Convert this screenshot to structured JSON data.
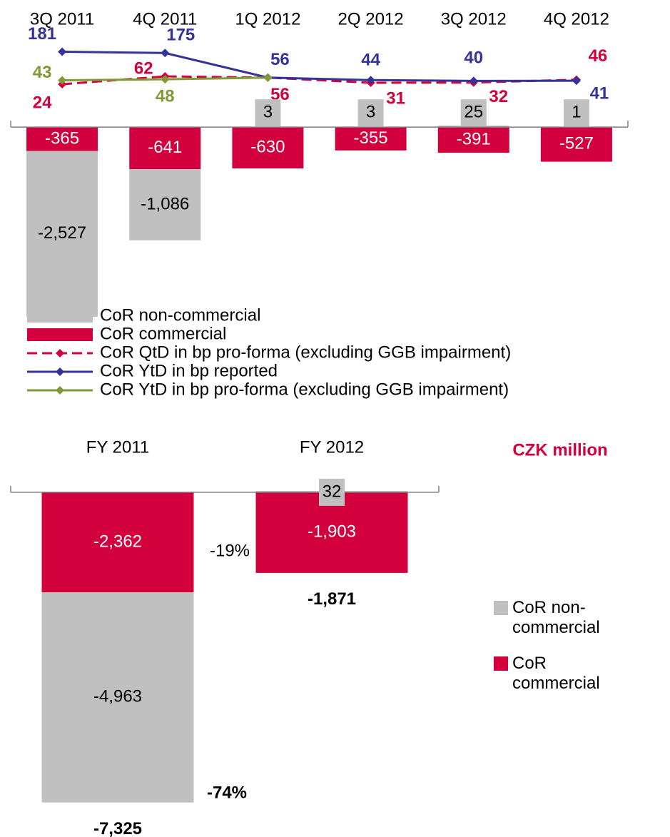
{
  "chart_data": [
    {
      "type": "bar",
      "stacked": true,
      "categories": [
        "3Q 2011",
        "4Q 2011",
        "1Q 2012",
        "2Q 2012",
        "3Q 2012",
        "4Q 2012"
      ],
      "series": [
        {
          "name": "CoR non-commercial",
          "color": "#c0c0c0",
          "values": [
            -2527,
            -1086,
            3,
            3,
            25,
            1
          ],
          "value_labels": [
            "-2,527",
            "-1,086",
            "3",
            "3",
            "25",
            "1"
          ]
        },
        {
          "name": "CoR commercial",
          "color": "#d2003c",
          "values": [
            -365,
            -641,
            -630,
            -355,
            -391,
            -527
          ]
        },
        {
          "name": "CoR QtD in bp pro-forma (excluding GGB impairment)",
          "type": "line",
          "axis": "y2",
          "dashed": true,
          "color": "#d2003c",
          "values": [
            24,
            62,
            56,
            31,
            32,
            46
          ]
        },
        {
          "name": "CoR YtD in bp reported",
          "type": "line",
          "axis": "y2",
          "color": "#333399",
          "values": [
            181,
            175,
            56,
            44,
            40,
            41
          ]
        },
        {
          "name": "CoR YtD in bp pro-forma (excluding GGB impairment)",
          "type": "line",
          "axis": "y2",
          "color": "#7f9a36",
          "values": [
            43,
            48,
            56,
            null,
            null,
            null
          ],
          "value_labels": [
            "43",
            "48",
            null,
            null,
            null,
            null
          ]
        }
      ],
      "ylim": [
        -2600,
        100
      ],
      "y2lim": [
        0,
        200
      ]
    },
    {
      "type": "bar",
      "stacked": true,
      "unit_label": "CZK million",
      "categories": [
        "FY 2011",
        "FY 2012"
      ],
      "series": [
        {
          "name": "CoR non-commercial",
          "color": "#c0c0c0",
          "values": [
            -4963,
            32
          ],
          "value_labels": [
            "-4,963",
            "32"
          ]
        },
        {
          "name": "CoR commercial",
          "color": "#d2003c",
          "values": [
            -2362,
            -1903
          ],
          "value_labels": [
            "-2,362",
            "-1,903"
          ]
        }
      ],
      "totals": [
        -7325,
        -1871
      ],
      "totals_labels": [
        "-7,325",
        "-1,871"
      ],
      "annotations": [
        "-19%",
        "-74%"
      ],
      "ylim": [
        -7500,
        100
      ]
    }
  ]
}
